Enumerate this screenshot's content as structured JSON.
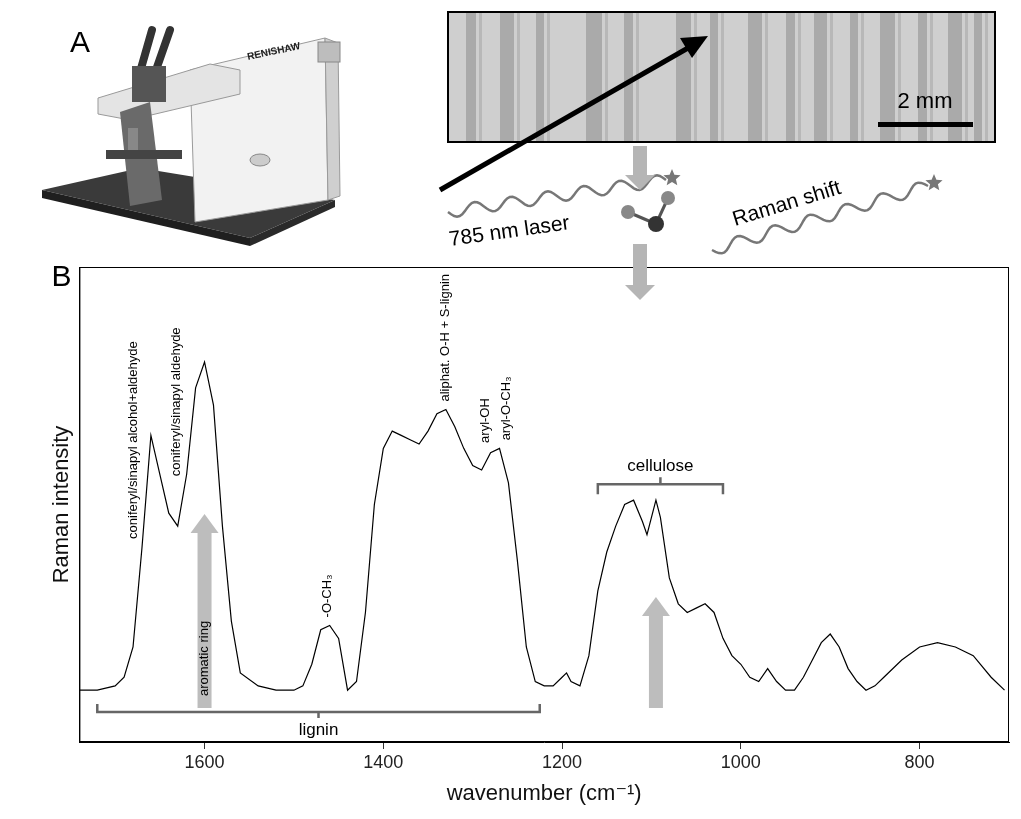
{
  "panel_a": {
    "label": "A",
    "instrument_brand": "RENISHAW",
    "laser_label": "785 nm laser",
    "scale_bar": "2 mm",
    "shift_label": "Raman shift"
  },
  "panel_b": {
    "label": "B"
  },
  "chart_data": {
    "type": "line",
    "x_label": "wavenumber (cm⁻¹)",
    "y_label": "Raman intensity",
    "color": "#000000",
    "x": [
      1740,
      1720,
      1700,
      1690,
      1680,
      1670,
      1660,
      1650,
      1640,
      1630,
      1620,
      1610,
      1600,
      1590,
      1580,
      1570,
      1560,
      1540,
      1520,
      1500,
      1490,
      1480,
      1470,
      1460,
      1450,
      1440,
      1430,
      1420,
      1410,
      1400,
      1390,
      1380,
      1370,
      1360,
      1350,
      1340,
      1330,
      1320,
      1310,
      1300,
      1290,
      1280,
      1270,
      1260,
      1250,
      1240,
      1230,
      1220,
      1210,
      1200,
      1195,
      1190,
      1180,
      1170,
      1160,
      1150,
      1140,
      1130,
      1120,
      1110,
      1105,
      1100,
      1095,
      1090,
      1080,
      1070,
      1060,
      1050,
      1040,
      1030,
      1020,
      1010,
      1000,
      990,
      980,
      970,
      960,
      950,
      940,
      930,
      920,
      910,
      900,
      890,
      880,
      870,
      860,
      850,
      840,
      820,
      800,
      780,
      760,
      740,
      720,
      705
    ],
    "values": [
      12,
      12,
      13,
      15,
      22,
      45,
      71,
      62,
      53,
      50,
      62,
      82,
      88,
      78,
      50,
      28,
      16,
      13,
      12,
      12,
      13,
      18,
      26,
      27,
      24,
      12,
      14,
      30,
      55,
      68,
      72,
      71,
      70,
      69,
      72,
      76,
      77,
      73,
      68,
      64,
      63,
      67,
      68,
      60,
      42,
      22,
      14,
      13,
      13,
      15,
      16,
      14,
      13,
      20,
      35,
      44,
      50,
      55,
      56,
      51,
      48,
      52,
      56,
      52,
      38,
      32,
      30,
      31,
      32,
      30,
      24,
      20,
      18,
      15,
      14,
      17,
      14,
      12,
      12,
      15,
      19,
      23,
      25,
      22,
      17,
      14,
      12,
      13,
      15,
      19,
      22,
      23,
      22,
      20,
      15,
      12
    ],
    "xlim": [
      1740,
      700
    ],
    "xticks": [
      1600,
      1400,
      1200,
      1000,
      800
    ],
    "ylim": [
      0,
      110
    ],
    "tick_labels": "x",
    "grid": false,
    "annotations": [
      {
        "text": "coniferyl/sinapyl alcohol+aldehyde",
        "x": 1680
      },
      {
        "text": "coniferyl/sinapyl aldehyde",
        "x": 1632
      },
      {
        "text": "aromatic ring",
        "x": 1600,
        "marker": "arrow"
      },
      {
        "text": "-O-CH₃",
        "x": 1462
      },
      {
        "text": "aliphat. O-H + S-lignin",
        "x": 1330
      },
      {
        "text": "aryl-OH",
        "x": 1286
      },
      {
        "text": "aryl-O-CH₃",
        "x": 1262
      }
    ],
    "arrows": [
      {
        "x": 1095
      }
    ],
    "brackets": [
      {
        "text": "cellulose",
        "x": [
          1160,
          1020
        ],
        "side": "above"
      },
      {
        "text": "lignin",
        "x": [
          1720,
          1225
        ],
        "side": "below"
      }
    ]
  }
}
